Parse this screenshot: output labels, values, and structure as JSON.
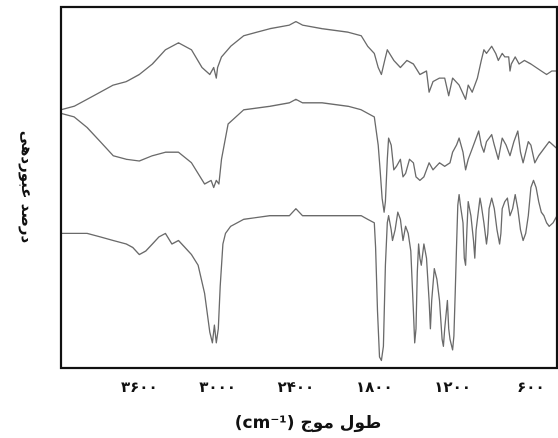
{
  "chart_data": {
    "type": "line",
    "title": "",
    "xlabel": "طول موج (cm⁻¹)",
    "ylabel": "درصد عبوردهی",
    "xlim": [
      4200,
      400
    ],
    "x_reversed": true,
    "x_ticks": [
      3600,
      3000,
      2400,
      1800,
      1200,
      600
    ],
    "x_tick_labels": [
      "۳۶۰۰",
      "۳۰۰۰",
      "۲۴۰۰",
      "۱۸۰۰",
      "۱۲۰۰",
      "۶۰۰"
    ],
    "y_units": "relative transmittance (curves offset, no y tick labels)",
    "ylim": [
      0,
      100
    ],
    "grid": false,
    "series": [
      {
        "points": [
          [
            4200,
            72
          ],
          [
            4100,
            73
          ],
          [
            4000,
            75
          ],
          [
            3900,
            77
          ],
          [
            3800,
            79
          ],
          [
            3700,
            80
          ],
          [
            3600,
            82
          ],
          [
            3500,
            85
          ],
          [
            3400,
            89
          ],
          [
            3300,
            91
          ],
          [
            3200,
            89
          ],
          [
            3120,
            84
          ],
          [
            3060,
            82
          ],
          [
            3030,
            84
          ],
          [
            3010,
            81
          ],
          [
            3000,
            84
          ],
          [
            2970,
            87
          ],
          [
            2900,
            90
          ],
          [
            2800,
            93
          ],
          [
            2600,
            95
          ],
          [
            2450,
            96
          ],
          [
            2400,
            97
          ],
          [
            2350,
            96
          ],
          [
            2200,
            95
          ],
          [
            2000,
            94
          ],
          [
            1900,
            93
          ],
          [
            1850,
            90
          ],
          [
            1800,
            88
          ],
          [
            1770,
            84
          ],
          [
            1745,
            82
          ],
          [
            1720,
            86
          ],
          [
            1700,
            89
          ],
          [
            1650,
            86
          ],
          [
            1600,
            84
          ],
          [
            1550,
            86
          ],
          [
            1500,
            85
          ],
          [
            1450,
            82
          ],
          [
            1400,
            83
          ],
          [
            1380,
            77
          ],
          [
            1350,
            80
          ],
          [
            1300,
            81
          ],
          [
            1260,
            81
          ],
          [
            1230,
            76
          ],
          [
            1200,
            81
          ],
          [
            1150,
            79
          ],
          [
            1100,
            75
          ],
          [
            1080,
            79
          ],
          [
            1050,
            77
          ],
          [
            1010,
            81
          ],
          [
            980,
            86
          ],
          [
            960,
            89
          ],
          [
            940,
            88
          ],
          [
            900,
            90
          ],
          [
            870,
            88
          ],
          [
            850,
            86
          ],
          [
            820,
            88
          ],
          [
            800,
            87
          ],
          [
            770,
            87
          ],
          [
            760,
            83
          ],
          [
            750,
            85
          ],
          [
            720,
            87
          ],
          [
            690,
            85
          ],
          [
            650,
            86
          ],
          [
            600,
            85
          ],
          [
            560,
            84
          ],
          [
            520,
            83
          ],
          [
            480,
            82
          ],
          [
            440,
            83
          ],
          [
            400,
            83
          ]
        ]
      },
      {
        "points": [
          [
            4200,
            71
          ],
          [
            4100,
            70
          ],
          [
            4000,
            67
          ],
          [
            3900,
            63
          ],
          [
            3800,
            59
          ],
          [
            3700,
            58
          ],
          [
            3600,
            57.5
          ],
          [
            3500,
            59
          ],
          [
            3400,
            60
          ],
          [
            3300,
            60
          ],
          [
            3200,
            57
          ],
          [
            3100,
            51
          ],
          [
            3050,
            52
          ],
          [
            3030,
            50
          ],
          [
            3010,
            52
          ],
          [
            2990,
            51
          ],
          [
            2970,
            58
          ],
          [
            2920,
            68
          ],
          [
            2800,
            72
          ],
          [
            2600,
            73
          ],
          [
            2450,
            74
          ],
          [
            2400,
            75
          ],
          [
            2350,
            74
          ],
          [
            2200,
            74
          ],
          [
            2000,
            73
          ],
          [
            1900,
            72
          ],
          [
            1800,
            70
          ],
          [
            1770,
            62
          ],
          [
            1755,
            55
          ],
          [
            1740,
            47
          ],
          [
            1725,
            43
          ],
          [
            1715,
            46
          ],
          [
            1700,
            58
          ],
          [
            1690,
            64
          ],
          [
            1670,
            62
          ],
          [
            1650,
            55
          ],
          [
            1630,
            56
          ],
          [
            1600,
            58
          ],
          [
            1580,
            53
          ],
          [
            1560,
            54
          ],
          [
            1530,
            58
          ],
          [
            1500,
            57
          ],
          [
            1480,
            53
          ],
          [
            1450,
            52
          ],
          [
            1420,
            53
          ],
          [
            1380,
            57
          ],
          [
            1350,
            55
          ],
          [
            1300,
            57
          ],
          [
            1260,
            56
          ],
          [
            1220,
            57
          ],
          [
            1200,
            60
          ],
          [
            1170,
            62
          ],
          [
            1150,
            64
          ],
          [
            1120,
            60
          ],
          [
            1100,
            55
          ],
          [
            1080,
            58
          ],
          [
            1050,
            61
          ],
          [
            1020,
            64
          ],
          [
            1000,
            66
          ],
          [
            980,
            62
          ],
          [
            960,
            60
          ],
          [
            940,
            63
          ],
          [
            900,
            65
          ],
          [
            880,
            62
          ],
          [
            850,
            58
          ],
          [
            820,
            64
          ],
          [
            790,
            62
          ],
          [
            760,
            59
          ],
          [
            730,
            63
          ],
          [
            700,
            66
          ],
          [
            680,
            60
          ],
          [
            660,
            57
          ],
          [
            640,
            60
          ],
          [
            620,
            63
          ],
          [
            600,
            62
          ],
          [
            570,
            57
          ],
          [
            540,
            59
          ],
          [
            500,
            61
          ],
          [
            460,
            63
          ],
          [
            430,
            62
          ],
          [
            400,
            61
          ]
        ]
      },
      {
        "points": [
          [
            4200,
            37
          ],
          [
            4100,
            37
          ],
          [
            4000,
            37
          ],
          [
            3900,
            36
          ],
          [
            3800,
            35
          ],
          [
            3700,
            34
          ],
          [
            3650,
            33
          ],
          [
            3600,
            31
          ],
          [
            3550,
            32
          ],
          [
            3500,
            34
          ],
          [
            3450,
            36
          ],
          [
            3400,
            37
          ],
          [
            3350,
            34
          ],
          [
            3300,
            35
          ],
          [
            3250,
            33
          ],
          [
            3200,
            31
          ],
          [
            3150,
            28
          ],
          [
            3100,
            20
          ],
          [
            3060,
            9
          ],
          [
            3040,
            6
          ],
          [
            3025,
            11
          ],
          [
            3010,
            6
          ],
          [
            2995,
            10
          ],
          [
            2980,
            22
          ],
          [
            2960,
            34
          ],
          [
            2940,
            37
          ],
          [
            2900,
            39
          ],
          [
            2800,
            41
          ],
          [
            2600,
            42
          ],
          [
            2450,
            42
          ],
          [
            2400,
            44
          ],
          [
            2350,
            42
          ],
          [
            2200,
            42
          ],
          [
            2000,
            42
          ],
          [
            1900,
            42
          ],
          [
            1850,
            41
          ],
          [
            1800,
            40
          ],
          [
            1790,
            33
          ],
          [
            1775,
            15
          ],
          [
            1760,
            2
          ],
          [
            1745,
            1
          ],
          [
            1730,
            5
          ],
          [
            1715,
            28
          ],
          [
            1700,
            40
          ],
          [
            1690,
            42
          ],
          [
            1670,
            38
          ],
          [
            1660,
            35
          ],
          [
            1640,
            38
          ],
          [
            1620,
            43
          ],
          [
            1600,
            41
          ],
          [
            1580,
            35
          ],
          [
            1560,
            39
          ],
          [
            1540,
            37
          ],
          [
            1520,
            32
          ],
          [
            1500,
            15
          ],
          [
            1490,
            6
          ],
          [
            1480,
            10
          ],
          [
            1470,
            26
          ],
          [
            1460,
            34
          ],
          [
            1450,
            30
          ],
          [
            1440,
            28
          ],
          [
            1420,
            34
          ],
          [
            1400,
            30
          ],
          [
            1380,
            18
          ],
          [
            1370,
            10
          ],
          [
            1360,
            18
          ],
          [
            1340,
            27
          ],
          [
            1320,
            24
          ],
          [
            1300,
            18
          ],
          [
            1280,
            7
          ],
          [
            1270,
            5
          ],
          [
            1260,
            10
          ],
          [
            1240,
            18
          ],
          [
            1230,
            10
          ],
          [
            1220,
            7
          ],
          [
            1200,
            4
          ],
          [
            1190,
            8
          ],
          [
            1180,
            20
          ],
          [
            1170,
            33
          ],
          [
            1160,
            45
          ],
          [
            1150,
            48
          ],
          [
            1140,
            45
          ],
          [
            1120,
            40
          ],
          [
            1110,
            30
          ],
          [
            1100,
            28
          ],
          [
            1090,
            38
          ],
          [
            1080,
            46
          ],
          [
            1060,
            42
          ],
          [
            1040,
            35
          ],
          [
            1030,
            30
          ],
          [
            1020,
            38
          ],
          [
            1000,
            44
          ],
          [
            990,
            47
          ],
          [
            980,
            45
          ],
          [
            960,
            40
          ],
          [
            940,
            34
          ],
          [
            930,
            37
          ],
          [
            920,
            44
          ],
          [
            900,
            47
          ],
          [
            880,
            44
          ],
          [
            860,
            38
          ],
          [
            840,
            34
          ],
          [
            830,
            37
          ],
          [
            820,
            44
          ],
          [
            800,
            46
          ],
          [
            780,
            47
          ],
          [
            760,
            42
          ],
          [
            740,
            44
          ],
          [
            720,
            48
          ],
          [
            700,
            44
          ],
          [
            680,
            38
          ],
          [
            660,
            35
          ],
          [
            640,
            37
          ],
          [
            620,
            42
          ],
          [
            600,
            50
          ],
          [
            580,
            52
          ],
          [
            560,
            50
          ],
          [
            540,
            46
          ],
          [
            520,
            43
          ],
          [
            500,
            42
          ],
          [
            480,
            40
          ],
          [
            460,
            39
          ],
          [
            430,
            40
          ],
          [
            400,
            42
          ]
        ]
      }
    ]
  }
}
